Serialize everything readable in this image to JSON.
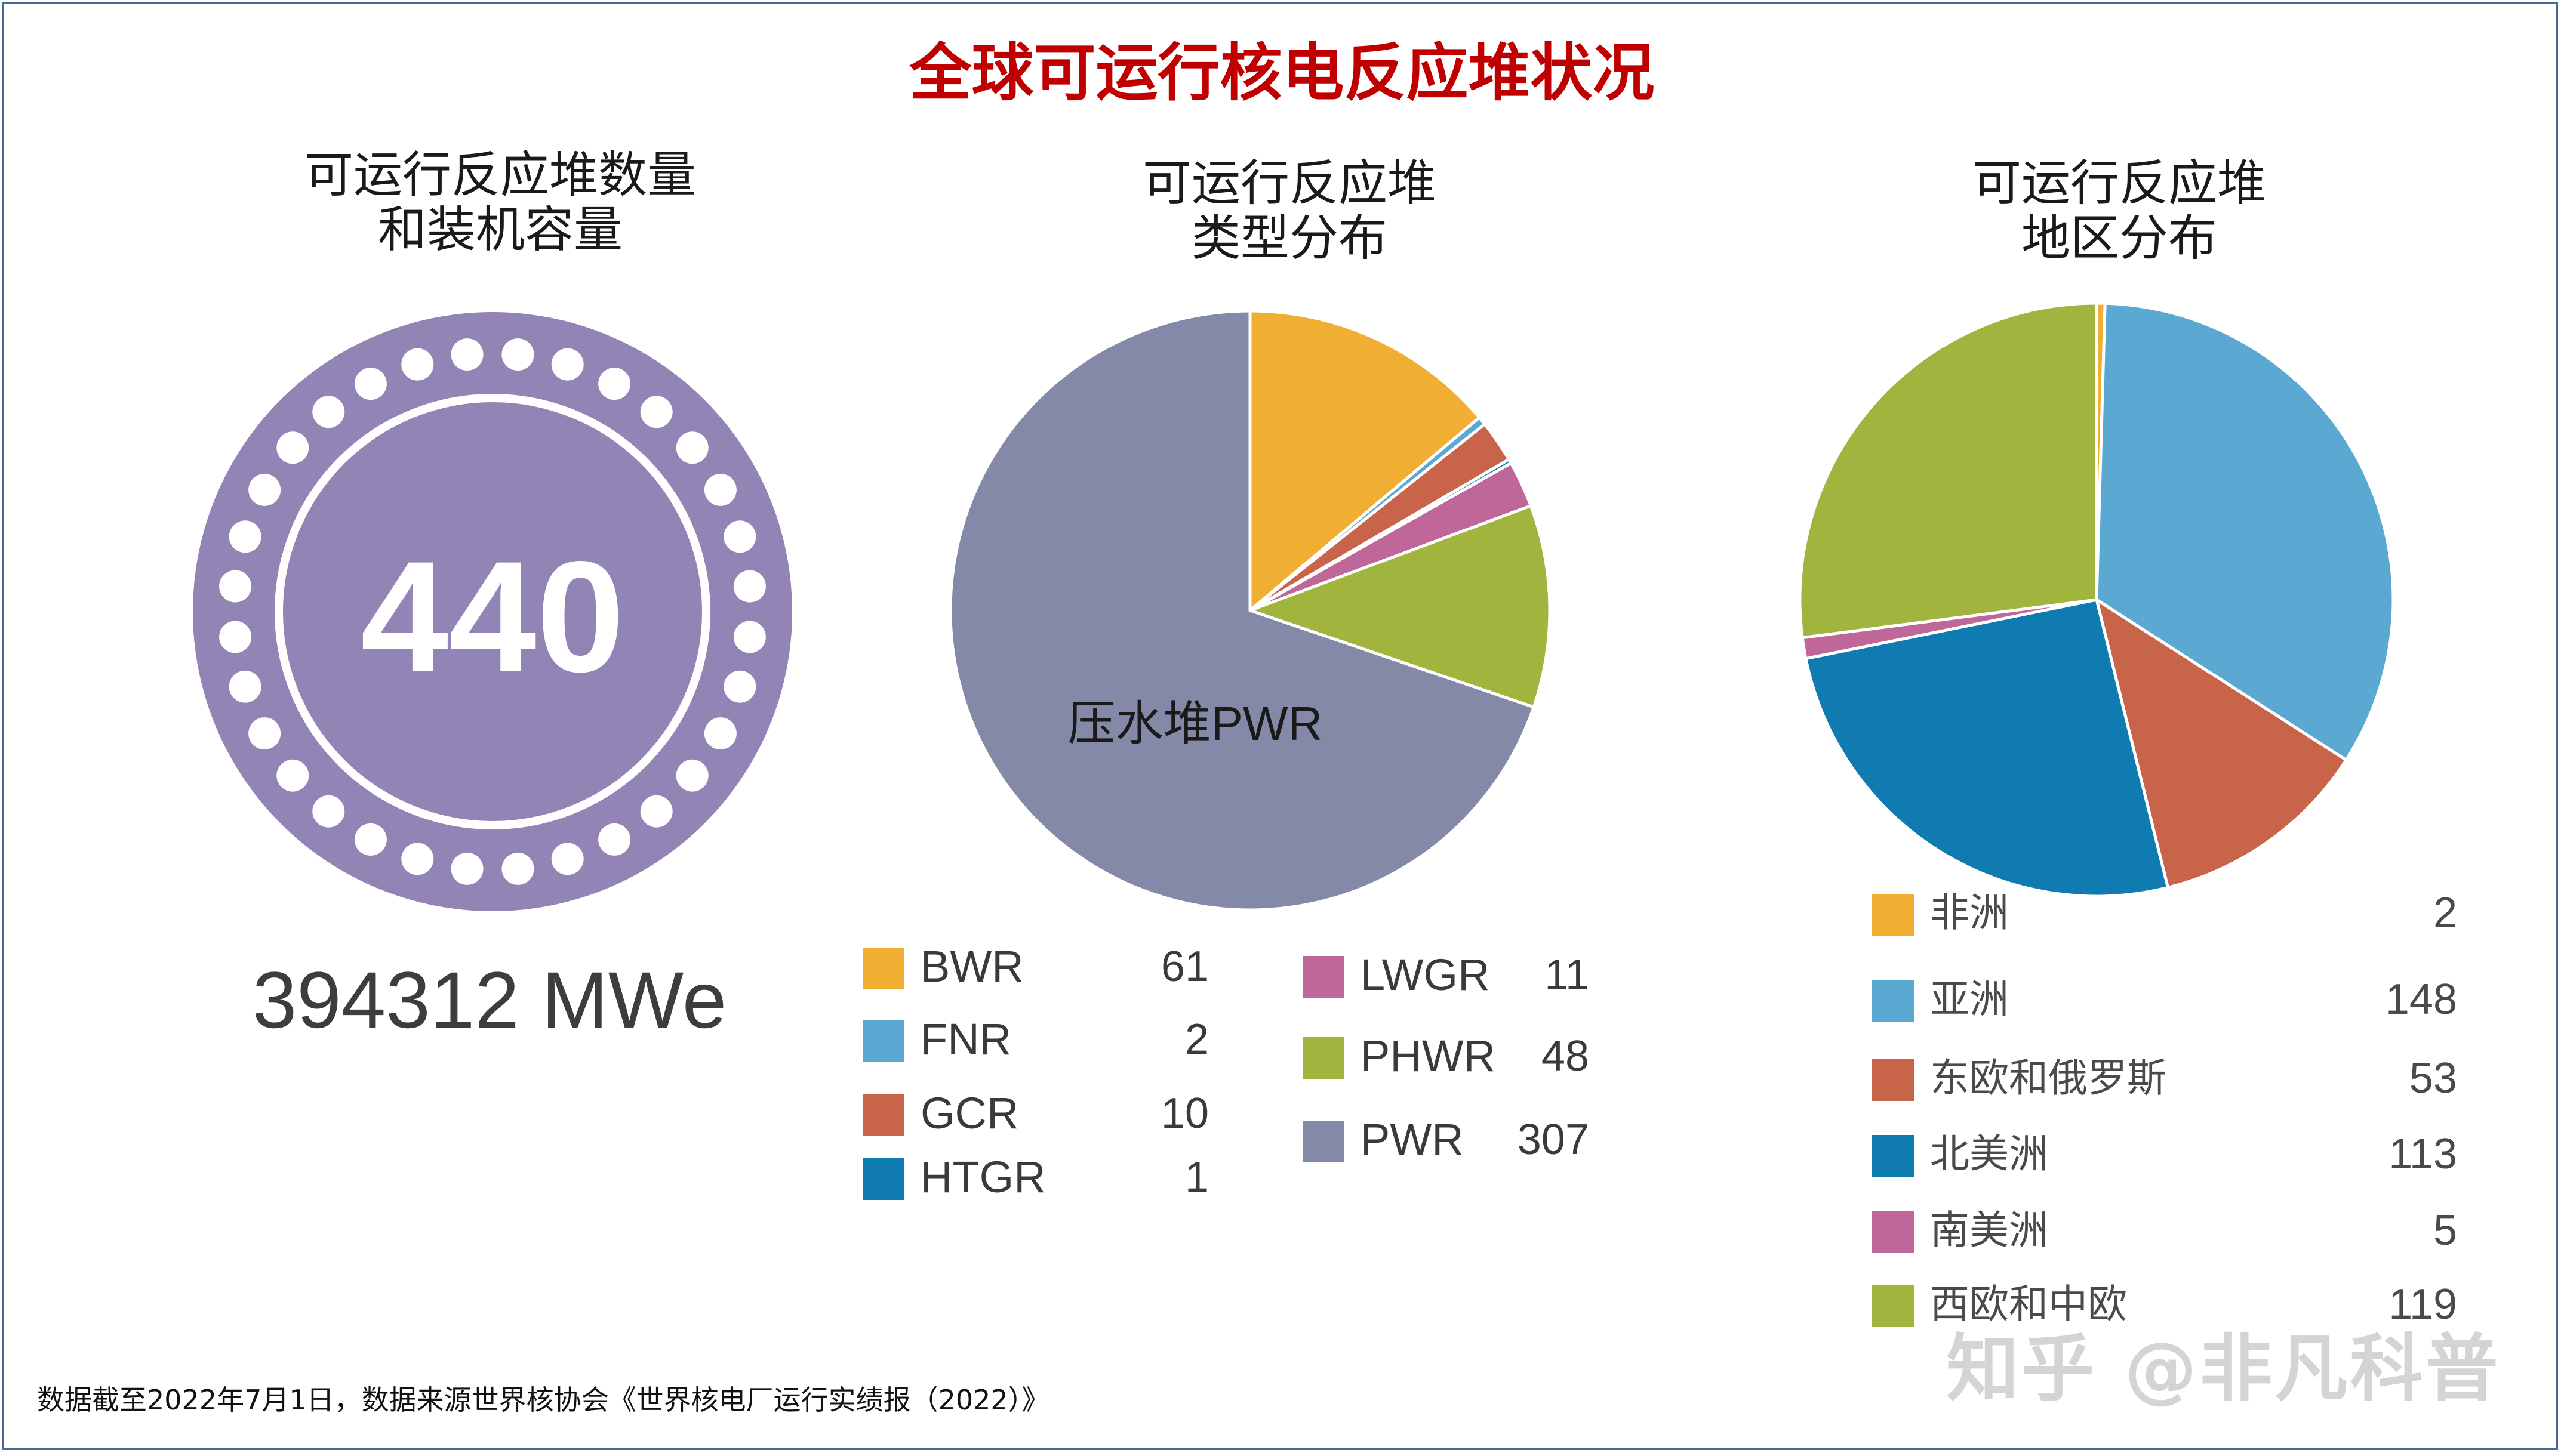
{
  "title": "全球可运行核电反应堆状况",
  "panels": {
    "count": {
      "subtitle_1": "可运行反应堆数量",
      "subtitle_2": "和装机容量",
      "number": "440",
      "capacity": "394312 MWe"
    },
    "type": {
      "subtitle_1": "可运行反应堆",
      "subtitle_2": "类型分布"
    },
    "region": {
      "subtitle_1": "可运行反应堆",
      "subtitle_2": "地区分布"
    }
  },
  "chart_data": [
    {
      "type": "pie",
      "title": "可运行反应堆类型分布",
      "slice_label": "压水堆PWR",
      "categories": [
        "BWR",
        "FNR",
        "GCR",
        "HTGR",
        "LWGR",
        "PHWR",
        "PWR"
      ],
      "values": [
        61,
        2,
        10,
        1,
        11,
        48,
        307
      ],
      "colors": [
        "#f0af32",
        "#5ba9d2",
        "#c8644a",
        "#0f7bb0",
        "#c0679a",
        "#a0b43e",
        "#8489a8"
      ]
    },
    {
      "type": "pie",
      "title": "可运行反应堆地区分布",
      "categories": [
        "非洲",
        "亚洲",
        "东欧和俄罗斯",
        "北美洲",
        "南美洲",
        "西欧和中欧"
      ],
      "values": [
        2,
        148,
        53,
        113,
        5,
        119
      ],
      "colors": [
        "#f0af32",
        "#5ba9d2",
        "#c8644a",
        "#0f7bb0",
        "#c0679a",
        "#a0b43e"
      ]
    }
  ],
  "ring_color": "#9284b4",
  "footnote": "数据截至2022年7月1日，数据来源世界核协会《世界核电厂运行实绩报（2022）》",
  "watermark": "知乎 @非凡科普"
}
